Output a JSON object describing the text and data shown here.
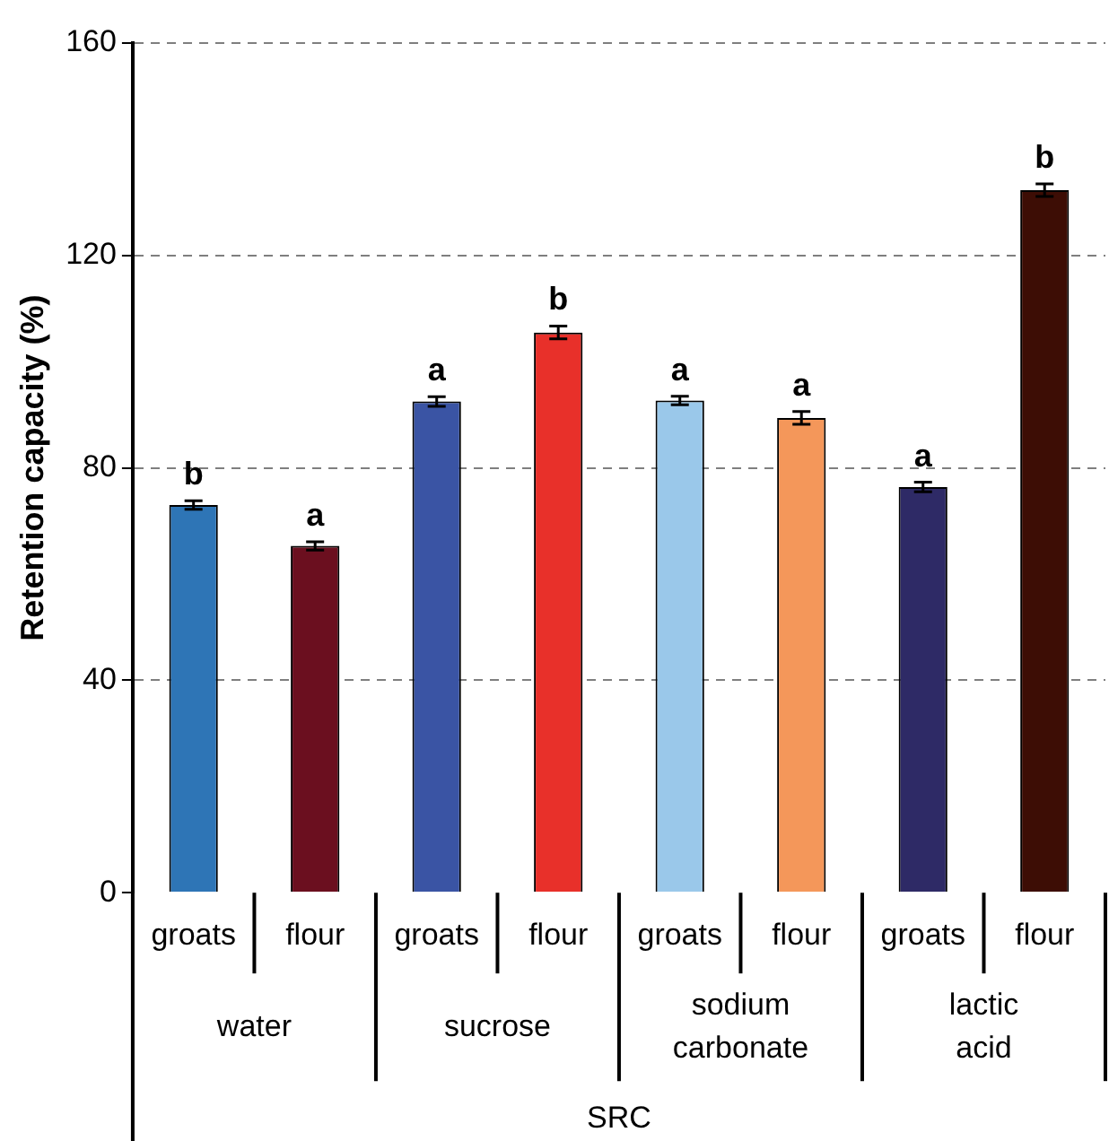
{
  "chart_data": {
    "type": "bar",
    "ylabel": "Retention capacity (%)",
    "xlabel": "SRC",
    "categories": [
      "groats",
      "flour",
      "groats",
      "flour",
      "groats",
      "flour",
      "groats",
      "flour"
    ],
    "values": [
      73,
      65.3,
      92.5,
      105.5,
      92.7,
      89.4,
      76.4,
      132.3
    ],
    "colors": [
      "#2e75b6",
      "#6b0f1f",
      "#3a54a4",
      "#e8302a",
      "#9ac8ea",
      "#f4975a",
      "#2e2a66",
      "#3d0d05"
    ],
    "errors": [
      0.8,
      0.8,
      0.9,
      1.2,
      0.8,
      1.2,
      0.9,
      1.2
    ],
    "value_labels": [
      "b",
      "a",
      "a",
      "b",
      "a",
      "a",
      "a",
      "b"
    ],
    "annotations": [
      "water",
      "sucrose",
      "sodium carbonate",
      "lactic acid"
    ],
    "ylim": [
      0,
      160
    ],
    "yticks": [
      0,
      40,
      80,
      120,
      160
    ],
    "grid": "y"
  }
}
